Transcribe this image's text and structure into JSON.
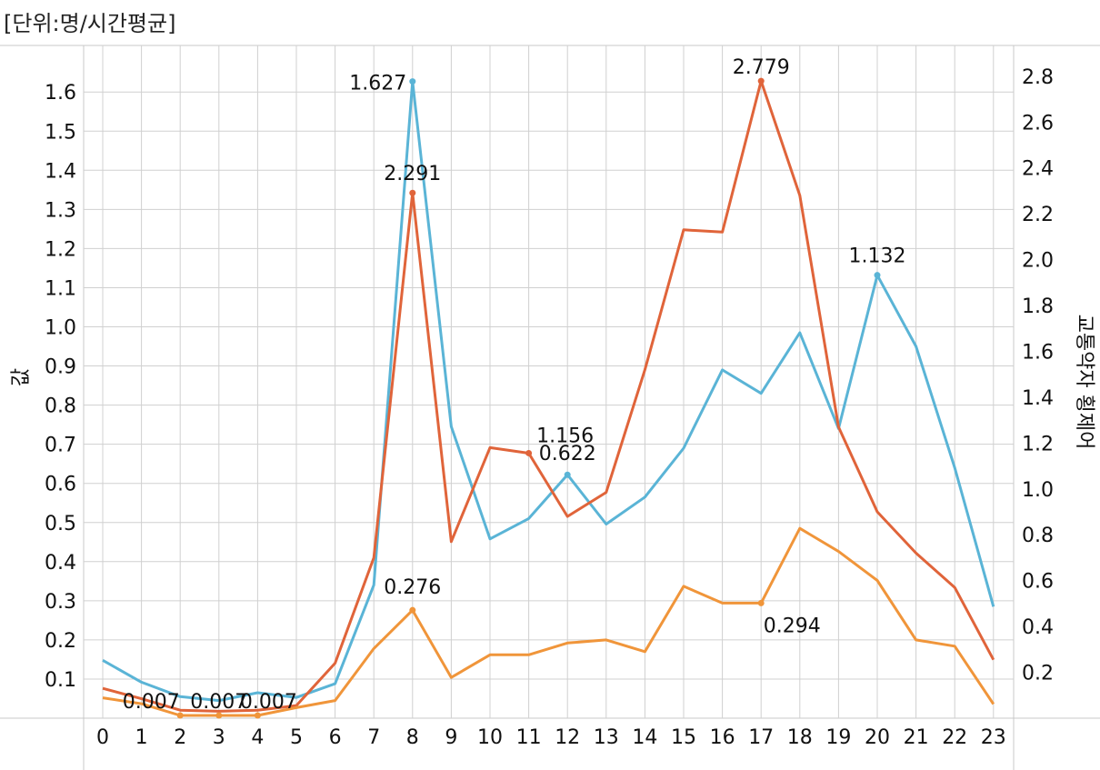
{
  "unit_label": "[단위:명/시간평균]",
  "chart_data": {
    "type": "line",
    "categories": [
      "0",
      "1",
      "2",
      "3",
      "4",
      "5",
      "6",
      "7",
      "8",
      "9",
      "10",
      "11",
      "12",
      "13",
      "14",
      "15",
      "16",
      "17",
      "18",
      "19",
      "20",
      "21",
      "22",
      "23"
    ],
    "left_axis": {
      "label": "값",
      "min": 0,
      "max": 1.6,
      "ticks": [
        "0.1",
        "0.2",
        "0.3",
        "0.4",
        "0.5",
        "0.6",
        "0.7",
        "0.8",
        "0.9",
        "1.0",
        "1.1",
        "1.2",
        "1.3",
        "1.4",
        "1.5",
        "1.6"
      ]
    },
    "right_axis": {
      "label": "교통약자 횡제어",
      "min": 0,
      "max": 2.8,
      "ticks": [
        "0.2",
        "0.4",
        "0.6",
        "0.8",
        "1.0",
        "1.2",
        "1.4",
        "1.6",
        "1.8",
        "2.0",
        "2.2",
        "2.4",
        "2.6",
        "2.8"
      ]
    },
    "series": [
      {
        "color": "#5ab4d6",
        "axis": "left",
        "values": [
          0.148,
          0.092,
          0.055,
          0.045,
          0.065,
          0.053,
          0.088,
          0.34,
          1.627,
          0.745,
          0.458,
          0.51,
          0.622,
          0.496,
          0.565,
          0.69,
          0.89,
          0.83,
          0.985,
          0.74,
          1.132,
          0.95,
          0.64,
          0.285
        ],
        "labels": [
          {
            "index": 8,
            "text": "1.627"
          },
          {
            "index": 12,
            "text": "0.622"
          },
          {
            "index": 20,
            "text": "1.132"
          }
        ]
      },
      {
        "color": "#e0643a",
        "axis": "right",
        "values": [
          0.13,
          0.085,
          0.035,
          0.03,
          0.035,
          0.055,
          0.24,
          0.7,
          2.291,
          0.77,
          1.18,
          1.156,
          0.88,
          0.985,
          1.52,
          2.13,
          2.12,
          2.779,
          2.28,
          1.27,
          0.9,
          0.72,
          0.57,
          0.255
        ],
        "labels": [
          {
            "index": 8,
            "text": "2.291"
          },
          {
            "index": 11,
            "text": "1.156"
          },
          {
            "index": 17,
            "text": "2.779"
          }
        ]
      },
      {
        "color": "#f0953a",
        "axis": "left",
        "values": [
          0.052,
          0.037,
          0.007,
          0.007,
          0.007,
          0.027,
          0.045,
          0.178,
          0.276,
          0.104,
          0.162,
          0.162,
          0.192,
          0.2,
          0.17,
          0.337,
          0.294,
          0.294,
          0.485,
          0.426,
          0.352,
          0.2,
          0.184,
          0.036
        ],
        "labels": [
          {
            "index": 2,
            "text": "0.007"
          },
          {
            "index": 3,
            "text": "0.007"
          },
          {
            "index": 4,
            "text": "0.007"
          },
          {
            "index": 8,
            "text": "0.276"
          },
          {
            "index": 17,
            "text": "0.294"
          }
        ]
      }
    ],
    "grid": true
  }
}
